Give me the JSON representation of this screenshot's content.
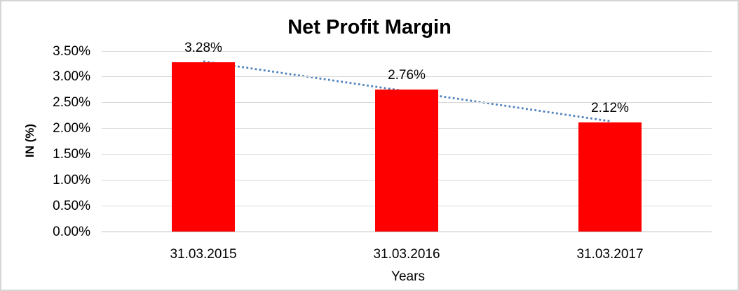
{
  "chart_data": {
    "type": "bar",
    "title": "Net Profit Margin",
    "categories": [
      "31.03.2015",
      "31.03.2016",
      "31.03.2017"
    ],
    "values": [
      3.28,
      2.76,
      2.12
    ],
    "data_labels": [
      "3.28%",
      "2.76%",
      "2.12%"
    ],
    "xlabel": "Years",
    "ylabel": "IN (%)",
    "ylim": [
      0,
      3.5
    ],
    "ytick_interval": 0.5,
    "ytick_labels": [
      "0.00%",
      "0.50%",
      "1.00%",
      "1.50%",
      "2.00%",
      "2.50%",
      "3.00%",
      "3.50%"
    ],
    "grid": true,
    "legend": "none",
    "colors": {
      "bar": "#ff0000",
      "gridline": "#d9d9d9",
      "axis_line": "#bfbfbf",
      "text": "#000000",
      "chart_border": "#d5d5d5"
    },
    "trendline": {
      "type": "linear",
      "style": "dotted",
      "color": "#4f81bd",
      "fitted_values": [
        3.3,
        2.14
      ]
    }
  }
}
